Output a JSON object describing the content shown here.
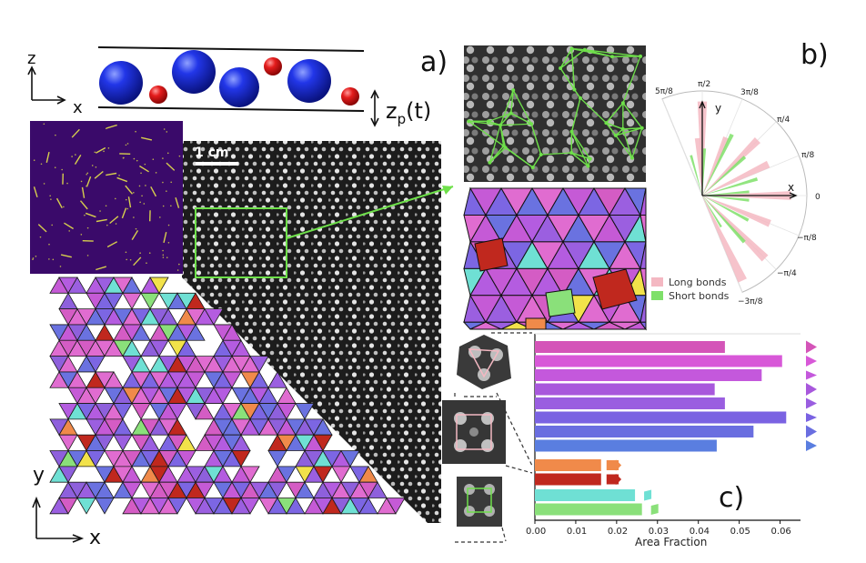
{
  "panel_labels": {
    "a": "a)",
    "b": "b)",
    "c": "c)"
  },
  "side_view": {
    "axis_z": "z",
    "axis_x": "x",
    "height_label": "z",
    "height_subscript": "p",
    "height_suffix": "(t)",
    "colors": {
      "large": "#1a2fd6",
      "small": "#e01a1a"
    }
  },
  "photo": {
    "scale_bar": "1 cm"
  },
  "tiling_axes": {
    "y": "y",
    "x": "x"
  },
  "polar": {
    "labels": {
      "top": "π/2",
      "top_left": "5π/8",
      "top_right": "3π/8",
      "r1": "π/4",
      "r2": "π/8",
      "zero": "0",
      "n1": "−π/8",
      "n2": "−π/4",
      "n3": "−3π/8"
    },
    "axis_x": "x",
    "axis_y": "y",
    "legend": [
      "Long bonds",
      "Short bonds"
    ],
    "colors": {
      "long": "#f4b8c2",
      "short": "#7fe06a"
    }
  },
  "chart_data": {
    "type": "bar",
    "orientation": "horizontal",
    "xlabel": "Area Fraction",
    "xlim": [
      0.0,
      0.065
    ],
    "xticks": [
      "0.00",
      "0.01",
      "0.02",
      "0.03",
      "0.04",
      "0.05",
      "0.06"
    ],
    "groups": [
      {
        "name": "triangles",
        "values": [
          0.0465,
          0.0605,
          0.0555,
          0.044,
          0.0465,
          0.0615,
          0.0535,
          0.0445
        ],
        "colors": [
          "#d454b8",
          "#d858d8",
          "#c458dc",
          "#a858dc",
          "#9a5ee0",
          "#7a62e2",
          "#6a6ee0",
          "#5a7ee0"
        ]
      },
      {
        "name": "rhombi",
        "values": [
          0.0162,
          0.0162
        ],
        "values_side": [
          0.0205,
          0.0205
        ],
        "colors": [
          "#f08a4a",
          "#c0281e"
        ]
      },
      {
        "name": "squares",
        "values": [
          0.0245,
          0.0262
        ],
        "colors": [
          "#6fe0d4",
          "#8ae07a"
        ]
      }
    ]
  }
}
